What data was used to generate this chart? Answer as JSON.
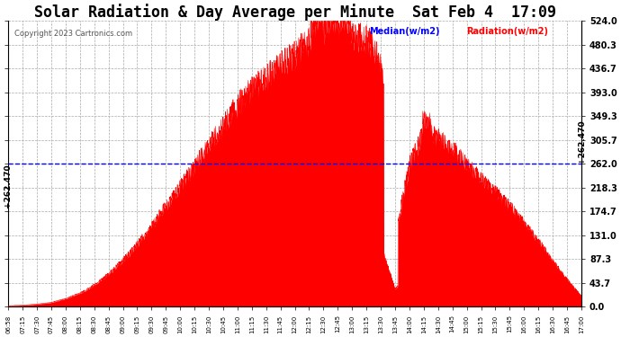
{
  "title": "Solar Radiation & Day Average per Minute  Sat Feb 4  17:09",
  "copyright": "Copyright 2023 Cartronics.com",
  "legend_median": "Median(w/m2)",
  "legend_radiation": "Radiation(w/m2)",
  "yticks": [
    0.0,
    43.7,
    87.3,
    131.0,
    174.7,
    218.3,
    262.0,
    305.7,
    349.3,
    393.0,
    436.7,
    480.3,
    524.0
  ],
  "ytick_labels": [
    "0.0",
    "43.7",
    "87.3",
    "131.0",
    "174.7",
    "218.3",
    "262.0",
    "305.7",
    "349.3",
    "393.0",
    "436.7",
    "480.3",
    "524.0"
  ],
  "ymax": 524.0,
  "ymin": 0.0,
  "median_value": 262.47,
  "median_label": "+262.470",
  "background_color": "#ffffff",
  "plot_bg_color": "#ffffff",
  "grid_color": "#aaaaaa",
  "fill_color": "#ff0000",
  "line_color": "#ff0000",
  "median_line_color": "#0000ff",
  "title_fontsize": 12,
  "tick_label_color": "#000000",
  "xtick_labels": [
    "06:58",
    "07:15",
    "07:30",
    "07:45",
    "08:00",
    "08:15",
    "08:30",
    "08:45",
    "09:00",
    "09:15",
    "09:30",
    "09:45",
    "10:00",
    "10:15",
    "10:30",
    "10:45",
    "11:00",
    "11:15",
    "11:30",
    "11:45",
    "12:00",
    "12:15",
    "12:30",
    "12:45",
    "13:00",
    "13:15",
    "13:30",
    "13:45",
    "14:00",
    "14:15",
    "14:30",
    "14:45",
    "15:00",
    "15:15",
    "15:30",
    "15:45",
    "16:00",
    "16:15",
    "16:30",
    "16:45",
    "17:00"
  ],
  "radiation_values": [
    2,
    3,
    5,
    8,
    15,
    25,
    40,
    60,
    85,
    115,
    148,
    185,
    220,
    258,
    295,
    335,
    370,
    400,
    420,
    445,
    460,
    490,
    510,
    520,
    500,
    490,
    450,
    130,
    260,
    320,
    310,
    290,
    260,
    235,
    210,
    185,
    155,
    120,
    85,
    50,
    20
  ]
}
